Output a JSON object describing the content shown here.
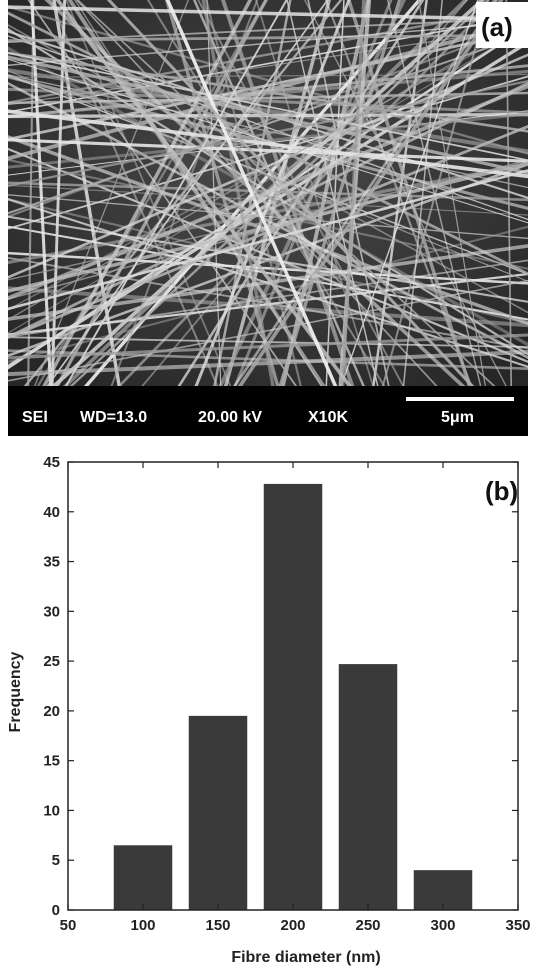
{
  "sem_image": {
    "panel_label": "(a)",
    "info_bar": {
      "mode": "SEI",
      "working_distance": "WD=13.0",
      "voltage": "20.00 kV",
      "magnification": "X10K",
      "scale_bar_label": "5μm"
    }
  },
  "chart_data": {
    "type": "bar",
    "panel_label": "(b)",
    "title": "",
    "xlabel": "Fibre diameter (nm)",
    "ylabel": "Frequency",
    "categories": [
      100,
      150,
      200,
      250,
      300
    ],
    "values": [
      6.5,
      19.5,
      42.8,
      24.7,
      4
    ],
    "xlim": [
      50,
      350
    ],
    "ylim": [
      0,
      45
    ],
    "xticks": [
      50,
      100,
      150,
      200,
      250,
      300,
      350
    ],
    "yticks": [
      0,
      5,
      10,
      15,
      20,
      25,
      30,
      35,
      40,
      45
    ],
    "bar_color": "#3a3a3a",
    "grid": false,
    "legend": "none"
  }
}
